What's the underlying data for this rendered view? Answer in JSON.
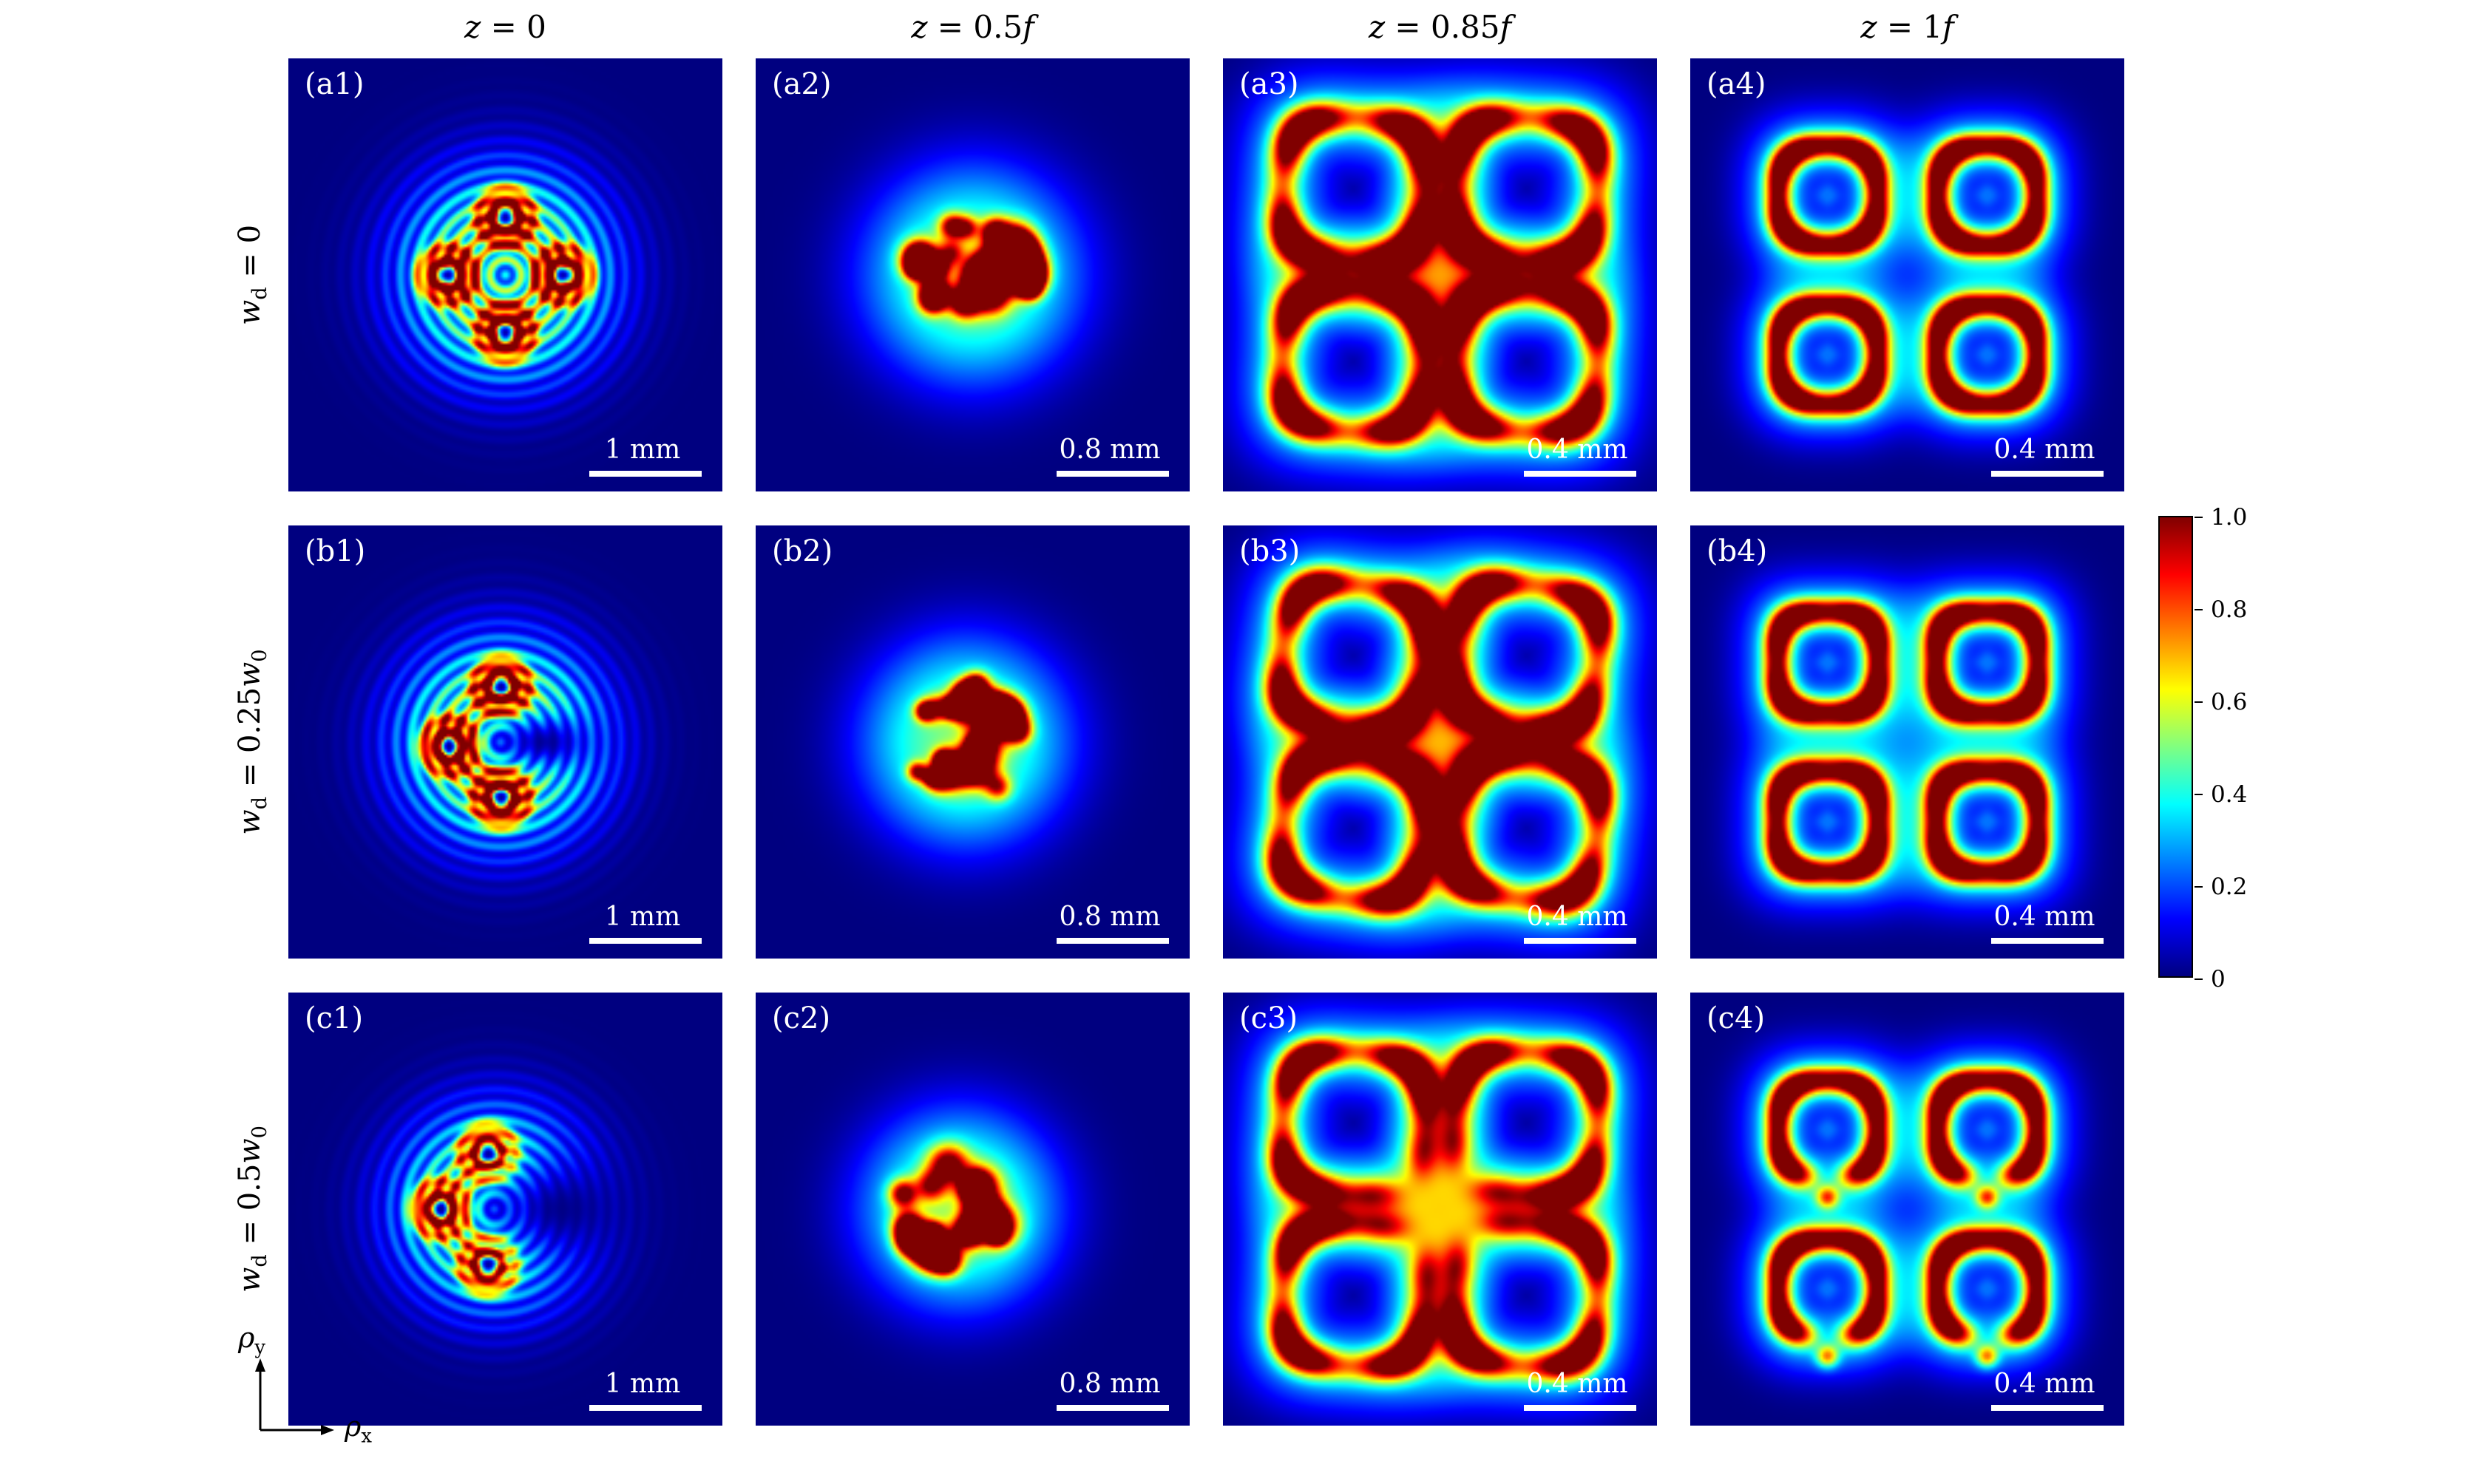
{
  "figure": {
    "column_titles": [
      {
        "var": "z",
        "rest": " = 0",
        "suffix": ""
      },
      {
        "var": "z",
        "rest": " = 0.5",
        "suffix": "f"
      },
      {
        "var": "z",
        "rest": " = 0.85",
        "suffix": "f"
      },
      {
        "var": "z",
        "rest": " = 1",
        "suffix": "f"
      }
    ],
    "row_labels": [
      {
        "var": "w",
        "sub": "d",
        "rest": " = 0",
        "var2": "",
        "sub2": ""
      },
      {
        "var": "w",
        "sub": "d",
        "rest": " = 0.25",
        "var2": "w",
        "sub2": "0"
      },
      {
        "var": "w",
        "sub": "d",
        "rest": " = 0.5",
        "var2": "w",
        "sub2": "0"
      }
    ],
    "axes": {
      "x_var": "ρ",
      "x_sub": "x",
      "y_var": "ρ",
      "y_sub": "y"
    },
    "colorbar": {
      "min": 0,
      "max": 1,
      "ticks": [
        "1.0",
        "0.8",
        "0.6",
        "0.4",
        "0.2",
        "0"
      ]
    },
    "background_color": "#000080",
    "accent_colors": {
      "hot": "#ff0000",
      "scalebar": "#ffffff"
    }
  },
  "chart_data": {
    "type": "heatmap",
    "colormap": "jet",
    "value_range": [
      0,
      1
    ],
    "grid": {
      "rows": 3,
      "cols": 4
    },
    "columns_z": [
      "0",
      "0.5f",
      "0.85f",
      "1f"
    ],
    "rows_wd": [
      "0",
      "0.25w0",
      "0.5w0"
    ],
    "axis_labels": {
      "x": "ρx",
      "y": "ρy"
    },
    "legend_position": "right-colorbar",
    "panels": [
      {
        "id": "a1",
        "label": "(a1)",
        "z": "0",
        "w_d": "0",
        "scale_bar": "1 mm",
        "description": "Circular beam with fine concentric interference fringes and four ringed vortex cores at top, right, bottom and left",
        "pattern": {
          "kind": "ringCores",
          "R": 0.48,
          "ripple": 90,
          "cx": 0,
          "cy": 0,
          "cores": [
            [
              0,
              -0.27
            ],
            [
              0.27,
              0
            ],
            [
              0,
              0.27
            ],
            [
              -0.27,
              0
            ]
          ],
          "notch": null
        }
      },
      {
        "id": "a2",
        "label": "(a2)",
        "z": "0.5f",
        "w_d": "0",
        "scale_bar": "0.8 mm",
        "description": "Compact speckled focal spot: irregular red hot spots inside a cyan-green disk",
        "pattern": {
          "kind": "speckle",
          "seed": 7,
          "R": 0.5,
          "bumps": 26,
          "spread": 0.3,
          "bias": 0
        }
      },
      {
        "id": "a3",
        "label": "(a3)",
        "z": "0.85f",
        "w_d": "0",
        "scale_bar": "0.4 mm",
        "description": "Four rounded-square bright rings in a 2x2 arrangement, merging near the centre",
        "pattern": {
          "kind": "squares",
          "s": 0.33,
          "d": 0.4,
          "p": 3.0,
          "w": 0.075,
          "rot": 0.06,
          "gapMode": "none",
          "gapSigma": 0,
          "gapDepth": 0
        }
      },
      {
        "id": "a4",
        "label": "(a4)",
        "z": "1f",
        "w_d": "0",
        "scale_bar": "0.4 mm",
        "description": "Four closed donut-shaped spots in a 2x2 arrangement with dark centres",
        "pattern": {
          "kind": "donuts",
          "r0": 0.23,
          "d": 0.37,
          "p": 2.6,
          "w": 0.06,
          "gapMode": "none",
          "gapSigma": 0,
          "gapDepth": 0,
          "subdot": 0
        }
      },
      {
        "id": "b1",
        "label": "(b1)",
        "z": "0",
        "w_d": "0.25w0",
        "scale_bar": "1 mm",
        "description": "Beam with three vortex cores (top, left, bottom) and a dark indentation right of centre",
        "pattern": {
          "kind": "ringCores",
          "R": 0.47,
          "ripple": 90,
          "cx": -0.02,
          "cy": 0,
          "cores": [
            [
              -0.02,
              -0.26
            ],
            [
              -0.26,
              0.02
            ],
            [
              -0.02,
              0.26
            ]
          ],
          "notch": {
            "x": 0.18,
            "y": 0,
            "rx": 0.22,
            "ry": 0.13,
            "depth": 0.94
          }
        }
      },
      {
        "id": "b2",
        "label": "(b2)",
        "z": "0.5f",
        "w_d": "0.25w0",
        "scale_bar": "0.8 mm",
        "description": "Speckled focal spot, hot spots slightly shifted toward the upper left",
        "pattern": {
          "kind": "speckle",
          "seed": 13,
          "R": 0.48,
          "bumps": 26,
          "spread": 0.29,
          "bias": -0.05
        }
      },
      {
        "id": "b3",
        "label": "(b3)",
        "z": "0.85f",
        "w_d": "0.25w0",
        "scale_bar": "0.4 mm",
        "description": "Four rounded-square rings, slightly rotated, merging near the centre",
        "pattern": {
          "kind": "squares",
          "s": 0.33,
          "d": 0.4,
          "p": 3.0,
          "w": 0.075,
          "rot": 0.14,
          "gapMode": "none",
          "gapSigma": 0,
          "gapDepth": 0
        }
      },
      {
        "id": "b4",
        "label": "(b4)",
        "z": "1f",
        "w_d": "0.25w0",
        "scale_bar": "0.4 mm",
        "description": "Four closed squarish ring spots in a 2x2 arrangement",
        "pattern": {
          "kind": "donuts",
          "r0": 0.235,
          "d": 0.37,
          "p": 3.0,
          "w": 0.062,
          "gapMode": "none",
          "gapSigma": 0,
          "gapDepth": 0,
          "subdot": 0
        }
      },
      {
        "id": "c1",
        "label": "(c1)",
        "z": "0",
        "w_d": "0.5w0",
        "scale_bar": "1 mm",
        "description": "Crescent-shaped beam opening to the right with three vortex cores on the left side",
        "pattern": {
          "kind": "ringCores",
          "R": 0.45,
          "ripple": 90,
          "cx": -0.05,
          "cy": 0,
          "cores": [
            [
              -0.08,
              -0.26
            ],
            [
              -0.3,
              0
            ],
            [
              -0.08,
              0.26
            ]
          ],
          "notch": {
            "x": 0.26,
            "y": 0,
            "rx": 0.36,
            "ry": 0.27,
            "depth": 0.97
          }
        }
      },
      {
        "id": "c2",
        "label": "(c2)",
        "z": "0.5f",
        "w_d": "0.5w0",
        "scale_bar": "0.8 mm",
        "description": "Speckled focal spot with red hot spots concentrated on the left side",
        "pattern": {
          "kind": "speckle",
          "seed": 29,
          "R": 0.46,
          "bumps": 24,
          "spread": 0.27,
          "bias": -0.1
        }
      },
      {
        "id": "c3",
        "label": "(c3)",
        "z": "0.85f",
        "w_d": "0.5w0",
        "scale_bar": "0.4 mm",
        "description": "Four rounded-square rings with gaps on their inner corners, open toward the centre",
        "pattern": {
          "kind": "squares",
          "s": 0.33,
          "d": 0.4,
          "p": 3.0,
          "w": 0.072,
          "rot": 0.06,
          "gapMode": "inward",
          "gapSigma": 0.5,
          "gapDepth": 0.9
        }
      },
      {
        "id": "c4",
        "label": "(c4)",
        "z": "1f",
        "w_d": "0.5w0",
        "scale_bar": "0.4 mm",
        "description": "Four horseshoe-shaped rings opening downward, each with a faint dot in the gap",
        "pattern": {
          "kind": "donuts",
          "r0": 0.23,
          "d": 0.37,
          "p": 2.6,
          "w": 0.06,
          "gapMode": "bottom",
          "gapSigma": 0.5,
          "gapDepth": 0.95,
          "subdot": 0.5
        }
      }
    ]
  }
}
